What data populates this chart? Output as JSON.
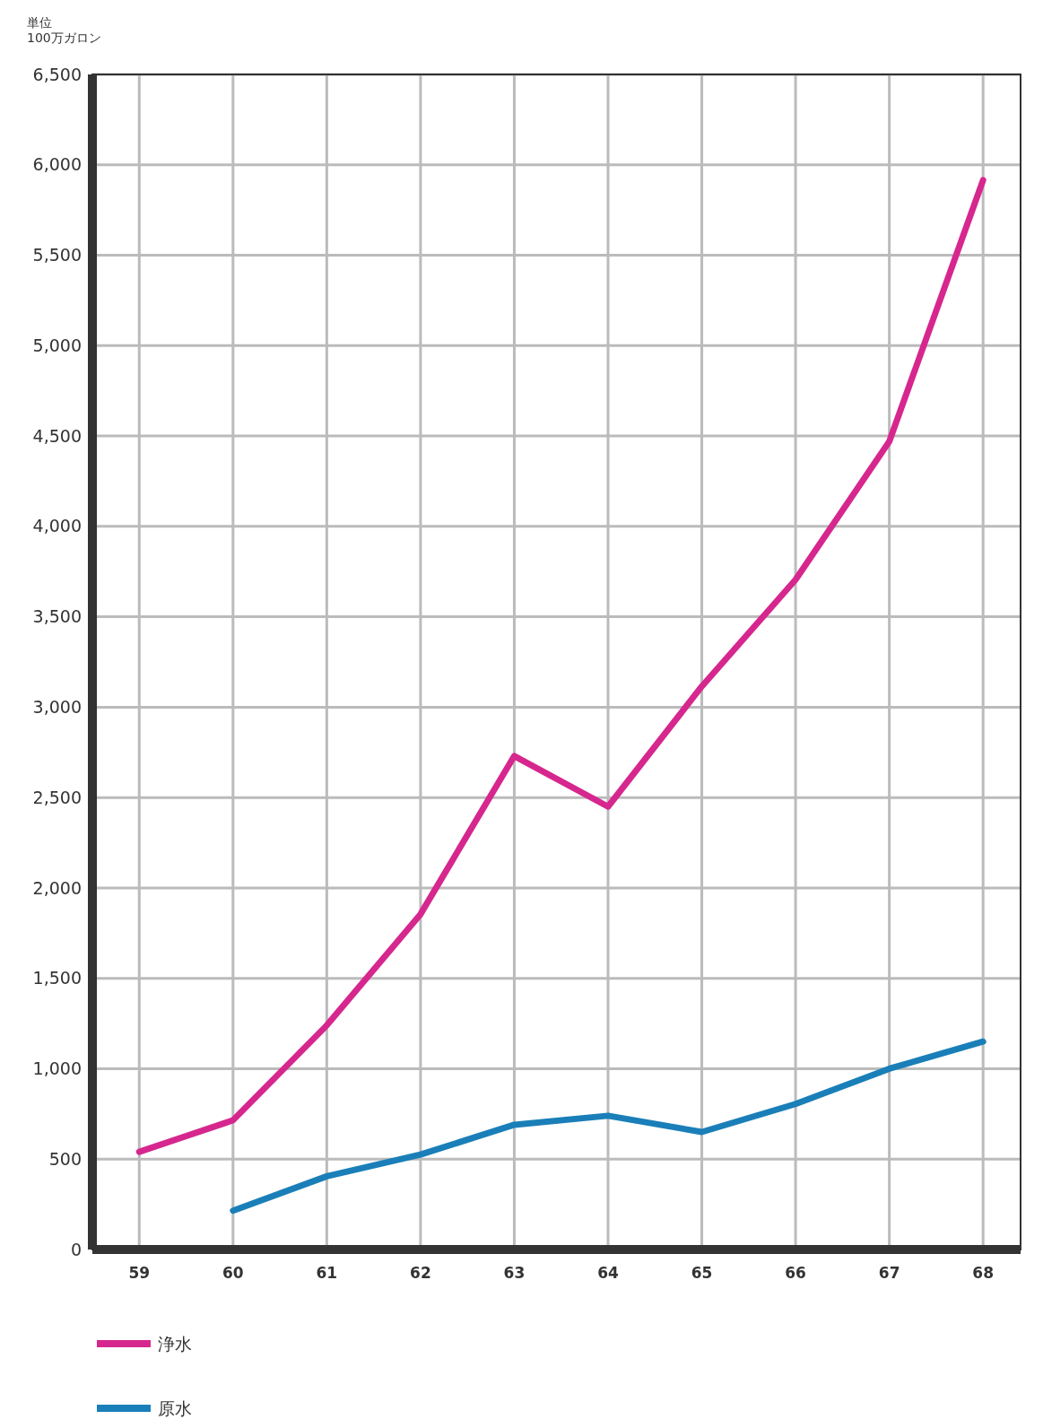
{
  "chart_data": {
    "type": "line",
    "ylabel": "単位 100万ガロン",
    "x": [
      59,
      60,
      61,
      62,
      63,
      64,
      65,
      66,
      67,
      68
    ],
    "xlim": [
      58.5,
      68.4
    ],
    "xticks": [
      59,
      60,
      61,
      62,
      63,
      64,
      65,
      66,
      67,
      68
    ],
    "ylim": [
      0,
      6500
    ],
    "yticks": [
      0,
      500,
      {
        "value": 1000,
        "label": "1,000"
      },
      {
        "value": 1500,
        "label": "1,500"
      },
      {
        "value": 2000,
        "label": "2,000"
      },
      {
        "value": 2500,
        "label": "2,500"
      },
      {
        "value": 3000,
        "label": "3,000"
      },
      {
        "value": 3500,
        "label": "3,500"
      },
      {
        "value": 4000,
        "label": "4,000"
      },
      {
        "value": 4500,
        "label": "4,500"
      },
      {
        "value": 5000,
        "label": "5,000"
      },
      {
        "value": 5500,
        "label": "5,500"
      },
      {
        "value": 6000,
        "label": "6,000"
      },
      {
        "value": 6500,
        "label": "6,500"
      }
    ],
    "grid": true,
    "legend": "bottom left",
    "marker": "none",
    "line_style": "solid",
    "series": [
      {
        "name": "浄水",
        "color": "#d6278e",
        "values": [
          540,
          715,
          1240,
          1855,
          2730,
          2450,
          3115,
          3705,
          4470,
          5915
        ]
      },
      {
        "name": "原水",
        "color": "#1a7fb8",
        "values": [
          null,
          215,
          405,
          525,
          690,
          740,
          650,
          805,
          1000,
          1150
        ]
      }
    ]
  }
}
